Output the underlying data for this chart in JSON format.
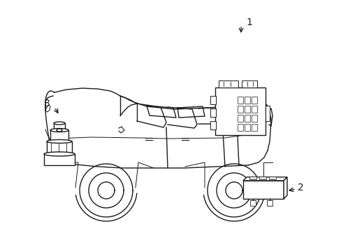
{
  "background_color": "#ffffff",
  "line_color": "#1a1a1a",
  "line_width": 1.0,
  "label_1": "1",
  "label_2": "2",
  "label_3": "3",
  "label_fontsize": 10,
  "figsize": [
    4.89,
    3.6
  ],
  "dpi": 100,
  "car": {
    "body_outline_x": [
      90,
      88,
      85,
      82,
      80,
      78,
      76,
      75,
      74,
      80,
      95,
      120,
      148,
      160,
      168,
      175,
      185,
      220,
      270,
      310,
      340,
      362,
      375,
      382,
      385,
      387,
      388,
      387,
      385,
      382,
      378,
      372
    ],
    "body_outline_y": [
      222,
      215,
      205,
      195,
      183,
      170,
      158,
      148,
      138,
      132,
      128,
      126,
      128,
      132,
      136,
      140,
      144,
      148,
      150,
      149,
      147,
      144,
      140,
      148,
      158,
      170,
      185,
      200,
      212,
      220,
      228,
      232
    ]
  }
}
